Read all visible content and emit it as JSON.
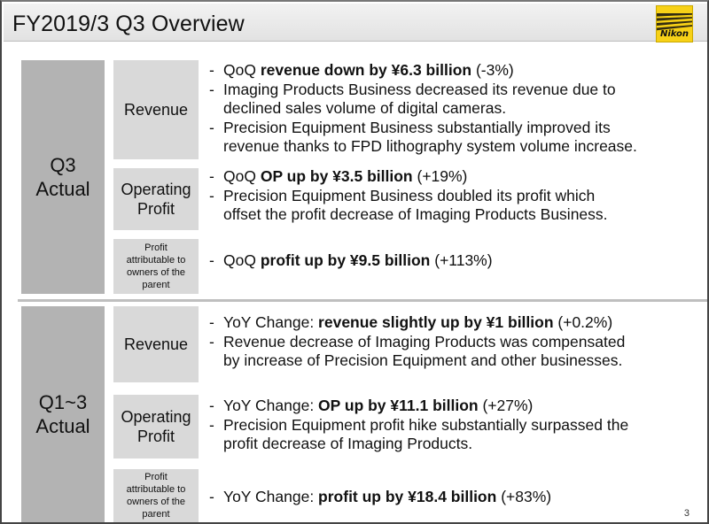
{
  "header": {
    "title": "FY2019/3 Q3 Overview",
    "logo_text": "Nikon"
  },
  "sections": [
    {
      "label_line1": "Q3",
      "label_line2": "Actual",
      "items": [
        {
          "label_line1": "Revenue",
          "label_line2": "",
          "bullets": [
            {
              "pre": "QoQ ",
              "bold": "revenue down by ¥6.3 billion",
              "post": " (-3%)"
            },
            {
              "pre": "Imaging Products Business decreased its revenue due to",
              "bold": "",
              "post": ""
            },
            {
              "pre": "declined sales volume of digital cameras.",
              "bold": "",
              "post": ""
            },
            {
              "pre": "Precision Equipment Business substantially improved its",
              "bold": "",
              "post": ""
            },
            {
              "pre": "revenue thanks to FPD lithography system volume increase.",
              "bold": "",
              "post": ""
            }
          ]
        },
        {
          "label_line1": "Operating",
          "label_line2": "Profit",
          "bullets": [
            {
              "pre": "QoQ ",
              "bold": "OP up by ¥3.5 billion",
              "post": " (+19%)"
            },
            {
              "pre": "Precision Equipment Business doubled its profit which",
              "bold": "",
              "post": ""
            },
            {
              "pre": "offset the profit decrease of Imaging Products Business.",
              "bold": "",
              "post": ""
            }
          ]
        },
        {
          "label_lines": [
            "Profit",
            "attributable to",
            "owners of the",
            "parent"
          ],
          "bullets": [
            {
              "pre": "QoQ ",
              "bold": "profit up by ¥9.5 billion",
              "post": " (+113%)"
            }
          ]
        }
      ]
    },
    {
      "label_line1": "Q1~3",
      "label_line2": "Actual",
      "items": [
        {
          "label_line1": "Revenue",
          "label_line2": "",
          "bullets": [
            {
              "pre": "YoY Change: ",
              "bold": "revenue slightly up by ¥1 billion",
              "post": " (+0.2%)"
            },
            {
              "pre": "Revenue decrease of Imaging Products was compensated",
              "bold": "",
              "post": ""
            },
            {
              "pre": "by increase of Precision Equipment and other businesses.",
              "bold": "",
              "post": ""
            }
          ]
        },
        {
          "label_line1": "Operating",
          "label_line2": "Profit",
          "bullets": [
            {
              "pre": "YoY Change: ",
              "bold": "OP up by ¥11.1 billion",
              "post": " (+27%)"
            },
            {
              "pre": "Precision Equipment profit hike substantially surpassed the",
              "bold": "",
              "post": ""
            },
            {
              "pre": "profit decrease of Imaging Products.",
              "bold": "",
              "post": ""
            }
          ]
        },
        {
          "label_lines": [
            "Profit",
            "attributable to",
            "owners of the",
            "parent"
          ],
          "bullets": [
            {
              "pre": "YoY Change: ",
              "bold": "profit up by ¥18.4 billion",
              "post": " (+83%)"
            }
          ]
        }
      ]
    }
  ],
  "page_number": "3"
}
